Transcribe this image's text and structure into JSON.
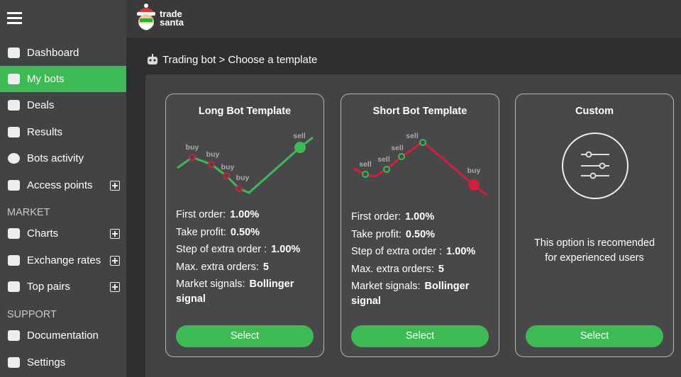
{
  "header": {
    "logo": [
      "trade",
      "santa"
    ]
  },
  "sidebar": {
    "items": [
      {
        "label": "Dashboard"
      },
      {
        "label": "My bots",
        "active": true
      },
      {
        "label": "Deals"
      },
      {
        "label": "Results"
      },
      {
        "label": "Bots activity"
      },
      {
        "label": "Access points",
        "expandable": true
      },
      {
        "section": "MARKET"
      },
      {
        "label": "Charts",
        "expandable": true
      },
      {
        "label": "Exchange rates",
        "expandable": true
      },
      {
        "label": "Top pairs",
        "expandable": true
      },
      {
        "section": "SUPPORT"
      },
      {
        "label": "Documentation"
      },
      {
        "label": "Settings"
      }
    ]
  },
  "breadcrumb": "Trading bot > Choose a template",
  "cards": [
    {
      "title": "Long Bot Template",
      "chart_labels": [
        "buy",
        "buy",
        "buy",
        "buy",
        "sell"
      ],
      "params": [
        {
          "label": "First order:",
          "value": "1.00%"
        },
        {
          "label": "Take profit:",
          "value": "0.50%"
        },
        {
          "label": "Step of extra order :",
          "value": "1.00%"
        },
        {
          "label": "Max. extra orders:",
          "value": "5"
        },
        {
          "label": "Market signals:",
          "value": "Bollinger signal"
        }
      ],
      "button": "Select"
    },
    {
      "title": "Short Bot Template",
      "chart_labels": [
        "sell",
        "sell",
        "sell",
        "sell",
        "buy"
      ],
      "params": [
        {
          "label": "First order:",
          "value": "1.00%"
        },
        {
          "label": "Take profit:",
          "value": "0.50%"
        },
        {
          "label": "Step of extra order :",
          "value": "1.00%"
        },
        {
          "label": "Max. extra orders:",
          "value": "5"
        },
        {
          "label": "Market signals:",
          "value": "Bollinger signal"
        }
      ],
      "button": "Select"
    },
    {
      "title": "Custom",
      "description": "This option is recomended for experienced users",
      "button": "Select"
    }
  ]
}
